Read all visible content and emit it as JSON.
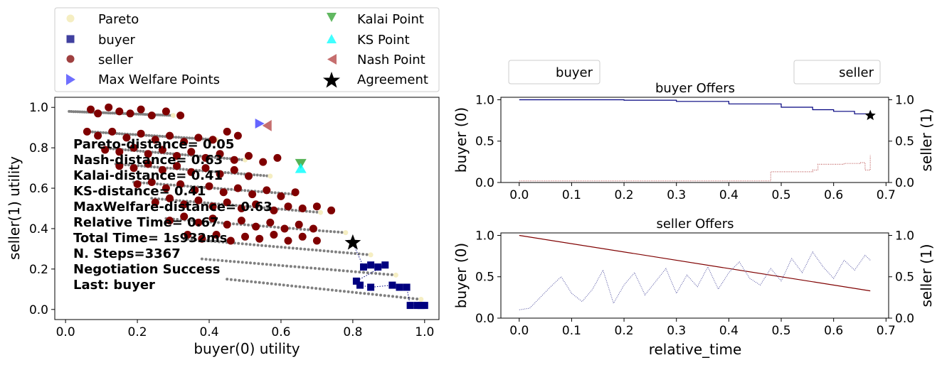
{
  "colors": {
    "pareto": "#f5eec2",
    "buyer": "#00007f",
    "seller": "#7f0000",
    "max_welfare": "#3232ff",
    "kalai": "#2ca02c",
    "ks": "#00ffff",
    "nash": "#b84a4a",
    "agreement": "#000000",
    "outcomes": "#808080"
  },
  "legend": {
    "pareto": "Pareto",
    "buyer": "buyer",
    "seller": "seller",
    "max_welfare": "Max Welfare Points",
    "kalai": "Kalai Point",
    "ks": "KS Point",
    "nash": "Nash Point",
    "agreement": "Agreement"
  },
  "stats": [
    "Pareto-distance= 0.05",
    "Nash-distance= 0.63",
    "Kalai-distance= 0.41",
    "KS-distance= 0.41",
    "MaxWelfare-distance= 0.63",
    "Relative Time= 0.67",
    "Total Time= 1s932ms",
    "N. Steps=3367",
    "Negotiation Success",
    "Last: buyer"
  ],
  "chart_data": [
    {
      "type": "scatter",
      "xlabel": "buyer(0) utility",
      "ylabel": "seller(1) utility",
      "xlim": [
        -0.03,
        1.04
      ],
      "ylim": [
        -0.05,
        1.05
      ],
      "xticks": [
        "0.0",
        "0.2",
        "0.4",
        "0.6",
        "0.8",
        "1.0"
      ],
      "yticks": [
        "0.0",
        "0.2",
        "0.4",
        "0.6",
        "0.8",
        "1.0"
      ],
      "special_points": {
        "max_welfare": [
          0.54,
          0.92
        ],
        "kalai": [
          0.655,
          0.72
        ],
        "ks": [
          0.655,
          0.7
        ],
        "nash": [
          0.56,
          0.91
        ],
        "agreement": [
          0.8,
          0.33
        ]
      },
      "outcome_rows": [
        {
          "x": [
            0.01,
            0.3
          ],
          "y": [
            0.98,
            0.96
          ]
        },
        {
          "x": [
            0.06,
            0.42
          ],
          "y": [
            0.88,
            0.84
          ]
        },
        {
          "x": [
            0.1,
            0.5
          ],
          "y": [
            0.8,
            0.74
          ]
        },
        {
          "x": [
            0.14,
            0.57
          ],
          "y": [
            0.72,
            0.66
          ]
        },
        {
          "x": [
            0.19,
            0.64
          ],
          "y": [
            0.63,
            0.57
          ]
        },
        {
          "x": [
            0.24,
            0.71
          ],
          "y": [
            0.55,
            0.48
          ]
        },
        {
          "x": [
            0.28,
            0.78
          ],
          "y": [
            0.45,
            0.38
          ]
        },
        {
          "x": [
            0.33,
            0.85
          ],
          "y": [
            0.35,
            0.27
          ]
        },
        {
          "x": [
            0.38,
            0.92
          ],
          "y": [
            0.25,
            0.17
          ]
        },
        {
          "x": [
            0.45,
            0.99
          ],
          "y": [
            0.15,
            0.05
          ]
        }
      ],
      "seller_offers": [
        [
          0.07,
          0.99
        ],
        [
          0.09,
          0.97
        ],
        [
          0.12,
          1.0
        ],
        [
          0.15,
          0.98
        ],
        [
          0.18,
          0.97
        ],
        [
          0.21,
          0.99
        ],
        [
          0.24,
          0.96
        ],
        [
          0.28,
          0.98
        ],
        [
          0.32,
          0.96
        ],
        [
          0.06,
          0.88
        ],
        [
          0.09,
          0.86
        ],
        [
          0.13,
          0.88
        ],
        [
          0.17,
          0.85
        ],
        [
          0.21,
          0.87
        ],
        [
          0.25,
          0.84
        ],
        [
          0.29,
          0.86
        ],
        [
          0.33,
          0.83
        ],
        [
          0.37,
          0.85
        ],
        [
          0.41,
          0.84
        ],
        [
          0.45,
          0.88
        ],
        [
          0.48,
          0.86
        ],
        [
          0.11,
          0.79
        ],
        [
          0.15,
          0.78
        ],
        [
          0.19,
          0.8
        ],
        [
          0.23,
          0.77
        ],
        [
          0.27,
          0.79
        ],
        [
          0.31,
          0.76
        ],
        [
          0.35,
          0.78
        ],
        [
          0.39,
          0.75
        ],
        [
          0.43,
          0.77
        ],
        [
          0.47,
          0.74
        ],
        [
          0.51,
          0.76
        ],
        [
          0.55,
          0.73
        ],
        [
          0.59,
          0.75
        ],
        [
          0.15,
          0.71
        ],
        [
          0.19,
          0.7
        ],
        [
          0.23,
          0.72
        ],
        [
          0.27,
          0.69
        ],
        [
          0.31,
          0.71
        ],
        [
          0.35,
          0.68
        ],
        [
          0.39,
          0.7
        ],
        [
          0.43,
          0.67
        ],
        [
          0.47,
          0.69
        ],
        [
          0.51,
          0.66
        ],
        [
          0.2,
          0.62
        ],
        [
          0.24,
          0.63
        ],
        [
          0.28,
          0.6
        ],
        [
          0.32,
          0.62
        ],
        [
          0.36,
          0.59
        ],
        [
          0.4,
          0.61
        ],
        [
          0.44,
          0.58
        ],
        [
          0.48,
          0.6
        ],
        [
          0.52,
          0.57
        ],
        [
          0.56,
          0.59
        ],
        [
          0.6,
          0.56
        ],
        [
          0.64,
          0.58
        ],
        [
          0.25,
          0.53
        ],
        [
          0.29,
          0.55
        ],
        [
          0.33,
          0.52
        ],
        [
          0.37,
          0.54
        ],
        [
          0.41,
          0.51
        ],
        [
          0.45,
          0.53
        ],
        [
          0.49,
          0.5
        ],
        [
          0.53,
          0.52
        ],
        [
          0.58,
          0.49
        ],
        [
          0.62,
          0.51
        ],
        [
          0.66,
          0.5
        ],
        [
          0.7,
          0.51
        ],
        [
          0.74,
          0.49
        ],
        [
          0.29,
          0.44
        ],
        [
          0.33,
          0.46
        ],
        [
          0.37,
          0.43
        ],
        [
          0.41,
          0.45
        ],
        [
          0.45,
          0.42
        ],
        [
          0.49,
          0.44
        ],
        [
          0.53,
          0.41
        ],
        [
          0.57,
          0.43
        ],
        [
          0.61,
          0.4
        ],
        [
          0.65,
          0.42
        ],
        [
          0.69,
          0.4
        ],
        [
          0.34,
          0.37
        ],
        [
          0.38,
          0.35
        ],
        [
          0.42,
          0.37
        ],
        [
          0.46,
          0.34
        ],
        [
          0.5,
          0.36
        ],
        [
          0.54,
          0.35
        ],
        [
          0.58,
          0.37
        ],
        [
          0.62,
          0.34
        ],
        [
          0.66,
          0.36
        ],
        [
          0.7,
          0.34
        ]
      ],
      "buyer_offers": [
        [
          0.83,
          0.21
        ],
        [
          0.85,
          0.22
        ],
        [
          0.87,
          0.21
        ],
        [
          0.89,
          0.22
        ],
        [
          0.81,
          0.14
        ],
        [
          0.82,
          0.12
        ],
        [
          0.85,
          0.11
        ],
        [
          0.91,
          0.12
        ],
        [
          0.93,
          0.11
        ],
        [
          0.95,
          0.11
        ],
        [
          0.96,
          0.02
        ],
        [
          0.98,
          0.02
        ],
        [
          0.99,
          0.02
        ],
        [
          1.0,
          0.02
        ]
      ]
    },
    {
      "type": "line",
      "title": "buyer Offers",
      "legend": [
        "buyer",
        "seller"
      ],
      "ylabel": "buyer (0)",
      "ylabel_right": "seller (1)",
      "xlim": [
        -0.035,
        0.705
      ],
      "ylim": [
        0.0,
        1.03
      ],
      "xticks": [
        "0.0",
        "0.1",
        "0.2",
        "0.3",
        "0.4",
        "0.5",
        "0.6",
        "0.7"
      ],
      "yticks": [
        "0.0",
        "0.5",
        "1.0"
      ],
      "yticks_right": [
        "0.0",
        "0.5",
        "1.0"
      ],
      "series": [
        {
          "name": "buyer",
          "x": [
            0.0,
            0.1,
            0.2,
            0.3,
            0.4,
            0.5,
            0.56,
            0.6,
            0.64,
            0.67
          ],
          "values": [
            1.0,
            1.0,
            0.995,
            0.98,
            0.95,
            0.91,
            0.88,
            0.86,
            0.83,
            0.81
          ]
        },
        {
          "x": [
            0.0,
            0.47,
            0.48,
            0.56,
            0.57,
            0.62,
            0.63,
            0.65,
            0.66,
            0.67
          ],
          "values": [
            0.02,
            0.02,
            0.13,
            0.15,
            0.22,
            0.23,
            0.23,
            0.24,
            0.15,
            0.33
          ]
        }
      ],
      "agreement": [
        0.67,
        0.81
      ]
    },
    {
      "type": "line",
      "title": "seller Offers",
      "xlabel": "relative_time",
      "ylabel": "buyer (0)",
      "ylabel_right": "seller (1)",
      "xlim": [
        -0.035,
        0.705
      ],
      "ylim": [
        0.0,
        1.03
      ],
      "xticks": [
        "0.0",
        "0.1",
        "0.2",
        "0.3",
        "0.4",
        "0.5",
        "0.6",
        "0.7"
      ],
      "yticks": [
        "0.0",
        "0.5",
        "1.0"
      ],
      "yticks_right": [
        "0.0",
        "0.5",
        "1.0"
      ],
      "series": [
        {
          "x": [
            0.0,
            0.67
          ],
          "values": [
            1.0,
            0.33
          ]
        },
        {
          "x": [
            0.0,
            0.02,
            0.04,
            0.06,
            0.08,
            0.1,
            0.12,
            0.14,
            0.16,
            0.18,
            0.2,
            0.22,
            0.24,
            0.26,
            0.28,
            0.3,
            0.32,
            0.34,
            0.36,
            0.38,
            0.4,
            0.42,
            0.44,
            0.46,
            0.48,
            0.5,
            0.52,
            0.54,
            0.56,
            0.58,
            0.6,
            0.62,
            0.64,
            0.66,
            0.67
          ],
          "values": [
            0.1,
            0.12,
            0.25,
            0.38,
            0.5,
            0.3,
            0.2,
            0.35,
            0.58,
            0.18,
            0.4,
            0.55,
            0.28,
            0.44,
            0.6,
            0.3,
            0.52,
            0.38,
            0.62,
            0.35,
            0.55,
            0.68,
            0.48,
            0.4,
            0.6,
            0.45,
            0.72,
            0.55,
            0.8,
            0.62,
            0.48,
            0.7,
            0.58,
            0.76,
            0.7
          ]
        }
      ]
    }
  ]
}
